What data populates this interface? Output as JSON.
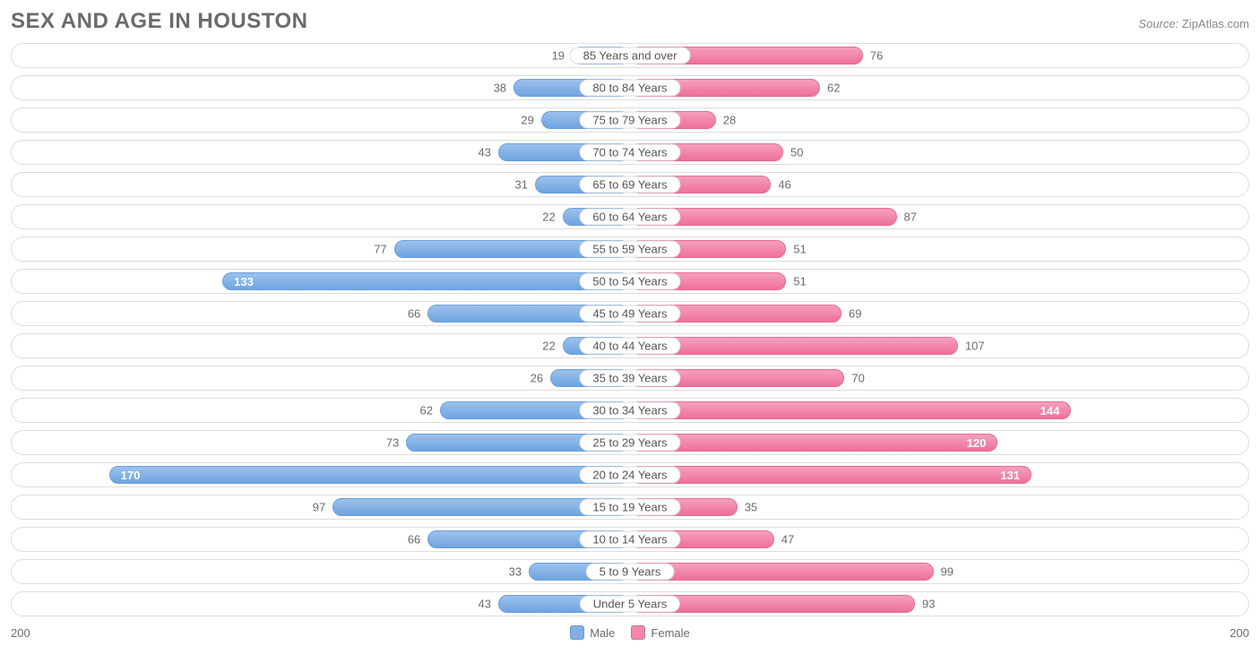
{
  "title": "SEX AND AGE IN HOUSTON",
  "source_label": "Source:",
  "source_value": "ZipAtlas.com",
  "axis_max": 200,
  "axis_left_label": "200",
  "axis_right_label": "200",
  "legend": {
    "male": {
      "label": "Male",
      "color": "#82b0e6"
    },
    "female": {
      "label": "Female",
      "color": "#f387ac"
    }
  },
  "colors": {
    "male_bar_top": "#9cc1ec",
    "male_bar_bottom": "#6fa4e0",
    "male_border": "#6a9fd9",
    "female_bar_top": "#f5a0bc",
    "female_bar_bottom": "#ef6f9b",
    "female_border": "#e86a96",
    "row_border": "#dddddd",
    "text_muted": "#6b6b6b",
    "background": "#ffffff"
  },
  "value_label_inside_threshold": 120,
  "rows": [
    {
      "category": "85 Years and over",
      "male": 19,
      "female": 76
    },
    {
      "category": "80 to 84 Years",
      "male": 38,
      "female": 62
    },
    {
      "category": "75 to 79 Years",
      "male": 29,
      "female": 28
    },
    {
      "category": "70 to 74 Years",
      "male": 43,
      "female": 50
    },
    {
      "category": "65 to 69 Years",
      "male": 31,
      "female": 46
    },
    {
      "category": "60 to 64 Years",
      "male": 22,
      "female": 87
    },
    {
      "category": "55 to 59 Years",
      "male": 77,
      "female": 51
    },
    {
      "category": "50 to 54 Years",
      "male": 133,
      "female": 51
    },
    {
      "category": "45 to 49 Years",
      "male": 66,
      "female": 69
    },
    {
      "category": "40 to 44 Years",
      "male": 22,
      "female": 107
    },
    {
      "category": "35 to 39 Years",
      "male": 26,
      "female": 70
    },
    {
      "category": "30 to 34 Years",
      "male": 62,
      "female": 144
    },
    {
      "category": "25 to 29 Years",
      "male": 73,
      "female": 120
    },
    {
      "category": "20 to 24 Years",
      "male": 170,
      "female": 131
    },
    {
      "category": "15 to 19 Years",
      "male": 97,
      "female": 35
    },
    {
      "category": "10 to 14 Years",
      "male": 66,
      "female": 47
    },
    {
      "category": "5 to 9 Years",
      "male": 33,
      "female": 99
    },
    {
      "category": "Under 5 Years",
      "male": 43,
      "female": 93
    }
  ]
}
